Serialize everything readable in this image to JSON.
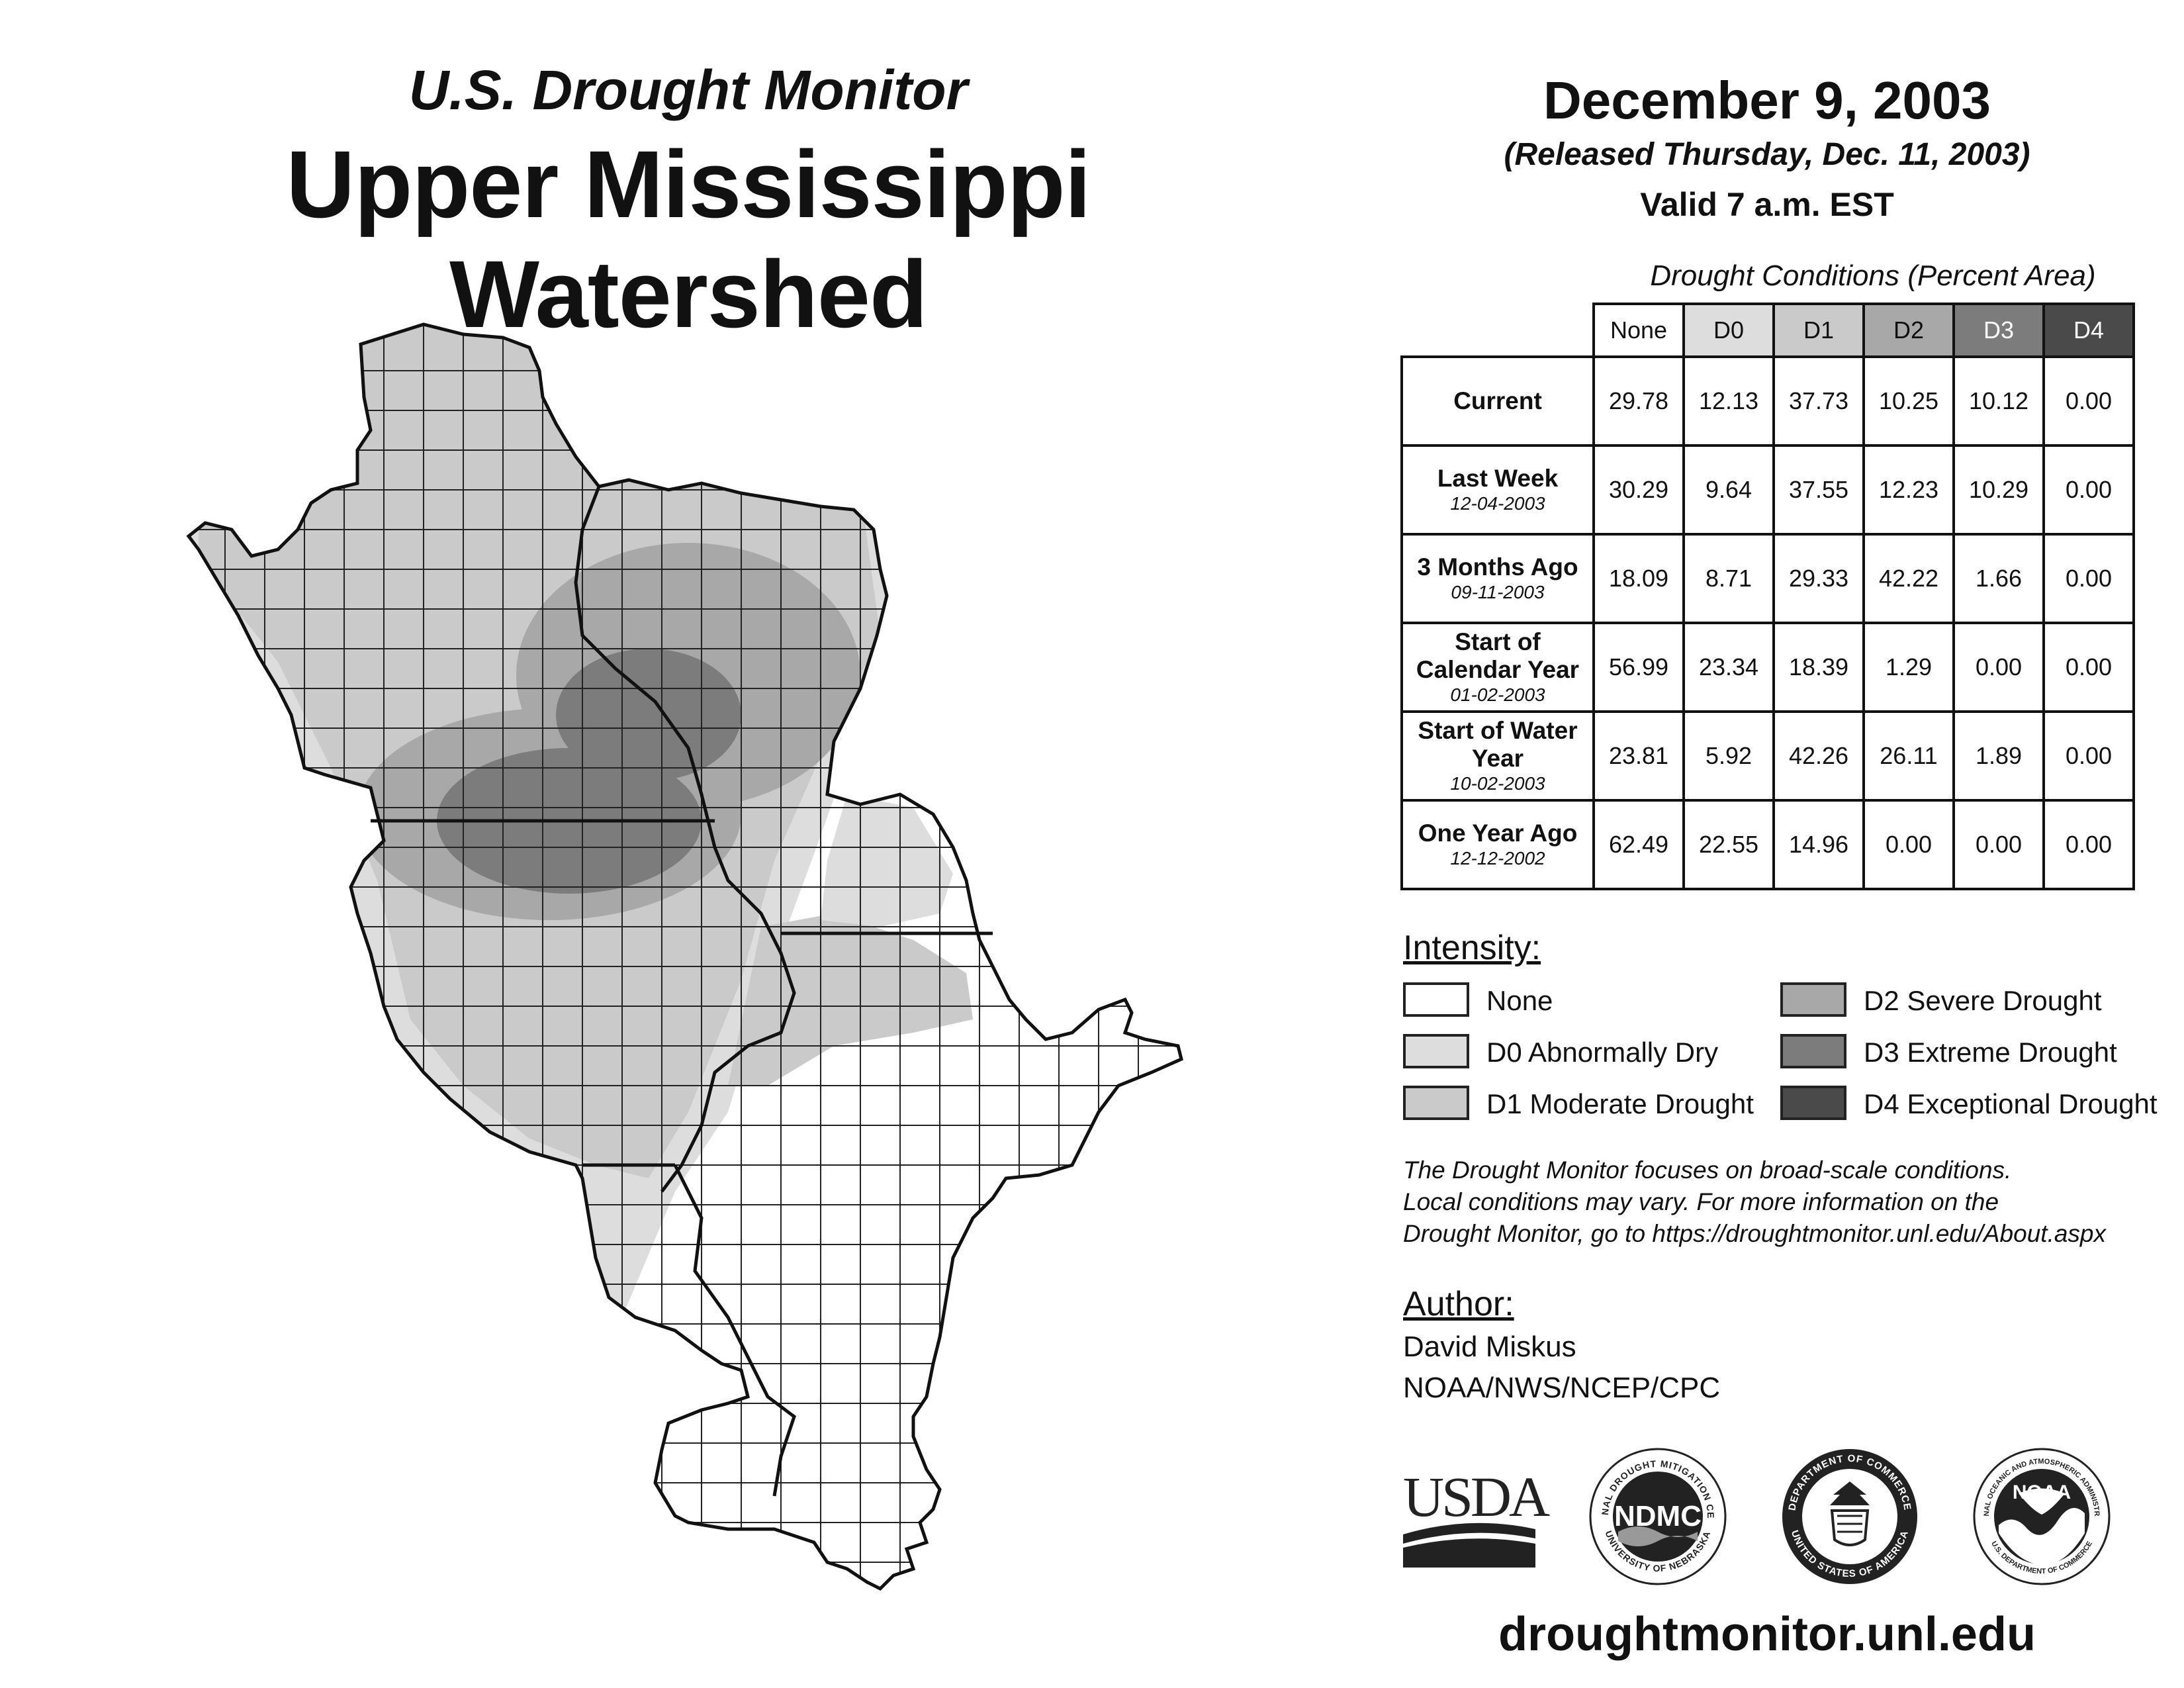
{
  "header": {
    "subtitle": "U.S. Drought Monitor",
    "title": "Upper Mississippi Watershed",
    "date": "December 9, 2003",
    "released": "(Released Thursday, Dec. 11, 2003)",
    "valid": "Valid 7 a.m. EST"
  },
  "table": {
    "caption": "Drought Conditions (Percent Area)",
    "columns": [
      "None",
      "D0",
      "D1",
      "D2",
      "D3",
      "D4"
    ],
    "rows": [
      {
        "label": "Current",
        "date": "",
        "values": [
          "29.78",
          "12.13",
          "37.73",
          "10.25",
          "10.12",
          "0.00"
        ]
      },
      {
        "label": "Last Week",
        "date": "12-04-2003",
        "values": [
          "30.29",
          "9.64",
          "37.55",
          "12.23",
          "10.29",
          "0.00"
        ]
      },
      {
        "label": "3 Months Ago",
        "date": "09-11-2003",
        "values": [
          "18.09",
          "8.71",
          "29.33",
          "42.22",
          "1.66",
          "0.00"
        ]
      },
      {
        "label": "Start of Calendar Year",
        "date": "01-02-2003",
        "values": [
          "56.99",
          "23.34",
          "18.39",
          "1.29",
          "0.00",
          "0.00"
        ]
      },
      {
        "label": "Start of Water Year",
        "date": "10-02-2003",
        "values": [
          "23.81",
          "5.92",
          "42.26",
          "26.11",
          "1.89",
          "0.00"
        ]
      },
      {
        "label": "One Year Ago",
        "date": "12-12-2002",
        "values": [
          "62.49",
          "22.55",
          "14.96",
          "0.00",
          "0.00",
          "0.00"
        ]
      }
    ]
  },
  "legend": {
    "title": "Intensity:",
    "items": [
      {
        "label": "None",
        "color": "#ffffff"
      },
      {
        "label": "D0 Abnormally Dry",
        "color": "#dddddd"
      },
      {
        "label": "D1 Moderate Drought",
        "color": "#cacaca"
      },
      {
        "label": "D2 Severe Drought",
        "color": "#a8a8a8"
      },
      {
        "label": "D3 Extreme Drought",
        "color": "#7c7c7c"
      },
      {
        "label": "D4 Exceptional Drought",
        "color": "#4a4a4a"
      }
    ]
  },
  "note": {
    "line1": "The Drought Monitor focuses on broad-scale conditions.",
    "line2": "Local conditions may vary. For more information on the",
    "line3": "Drought Monitor, go to https://droughtmonitor.unl.edu/About.aspx"
  },
  "author": {
    "title": "Author:",
    "name": "David Miskus",
    "org": "NOAA/NWS/NCEP/CPC"
  },
  "logos": {
    "usda": "USDA",
    "ndmc": "NDMC",
    "ndmc_ring_top": "NATIONAL DROUGHT MITIGATION CENTER",
    "ndmc_ring_bottom": "UNIVERSITY OF NEBRASKA",
    "doc_ring_top": "DEPARTMENT OF COMMERCE",
    "doc_ring_bottom": "UNITED STATES OF AMERICA",
    "noaa": "NOAA",
    "noaa_ring_top": "NATIONAL OCEANIC AND ATMOSPHERIC ADMINISTRATION",
    "noaa_ring_bottom": "U.S. DEPARTMENT OF COMMERCE"
  },
  "footer": {
    "website": "droughtmonitor.unl.edu"
  }
}
